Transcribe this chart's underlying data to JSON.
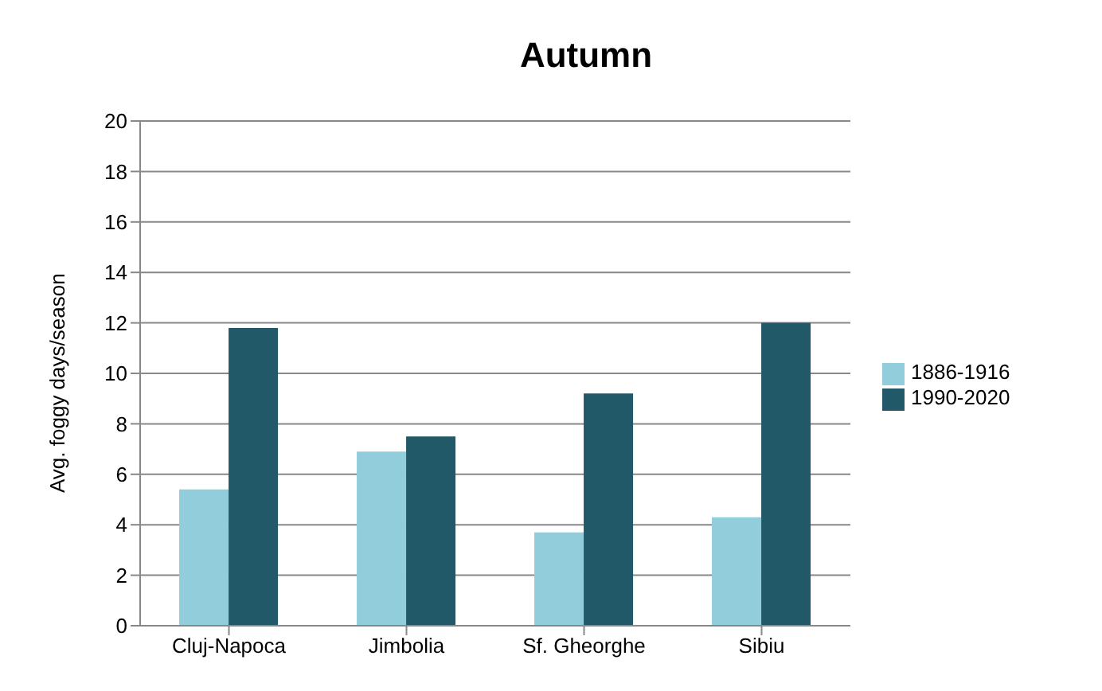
{
  "chart_data": {
    "type": "bar",
    "title": "Autumn",
    "ylabel": "Avg. foggy days/season",
    "categories": [
      "Cluj-Napoca",
      "Jimbolia",
      "Sf. Gheorghe",
      "Sibiu"
    ],
    "series": [
      {
        "name": "1886-1916",
        "color": "#92cddc",
        "values": [
          5.4,
          6.9,
          3.7,
          4.3
        ]
      },
      {
        "name": "1990-2020",
        "color": "#215968",
        "values": [
          11.8,
          7.5,
          9.2,
          12.0
        ]
      }
    ],
    "ylim": [
      0,
      20
    ],
    "yticks": [
      0,
      2,
      4,
      6,
      8,
      10,
      12,
      14,
      16,
      18,
      20
    ],
    "grid": "y",
    "legend": "right"
  }
}
